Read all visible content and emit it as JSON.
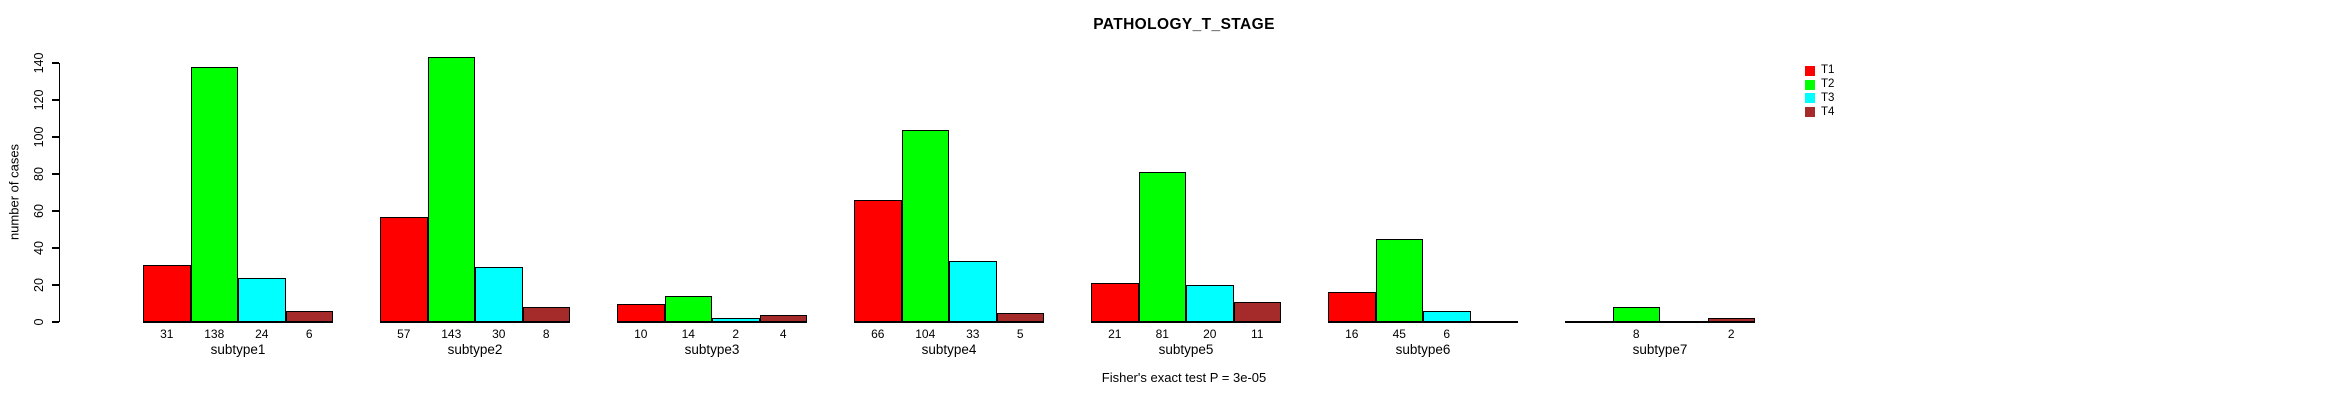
{
  "chart_data": {
    "type": "bar",
    "grouped": true,
    "title": "PATHOLOGY_T_STAGE",
    "xlabel": "",
    "ylabel": "number of cases",
    "categories": [
      "subtype1",
      "subtype2",
      "subtype3",
      "subtype4",
      "subtype5",
      "subtype6",
      "subtype7"
    ],
    "series": [
      {
        "name": "T1",
        "color": "#FF0000",
        "values": [
          31,
          57,
          10,
          66,
          21,
          16,
          0
        ]
      },
      {
        "name": "T2",
        "color": "#00FF00",
        "values": [
          138,
          143,
          14,
          104,
          81,
          45,
          8
        ]
      },
      {
        "name": "T3",
        "color": "#00FFFF",
        "values": [
          24,
          30,
          2,
          33,
          20,
          6,
          0
        ]
      },
      {
        "name": "T4",
        "color": "#A52A2A",
        "values": [
          6,
          8,
          4,
          5,
          11,
          0,
          2
        ]
      }
    ],
    "value_labels": [
      [
        "31",
        "138",
        "24",
        "6"
      ],
      [
        "57",
        "143",
        "30",
        "8"
      ],
      [
        "10",
        "14",
        "2",
        "4"
      ],
      [
        "66",
        "104",
        "33",
        "5"
      ],
      [
        "21",
        "81",
        "20",
        "11"
      ],
      [
        "16",
        "45",
        "6",
        ""
      ],
      [
        "",
        "8",
        "",
        "2"
      ]
    ],
    "yticks": [
      0,
      20,
      40,
      60,
      80,
      100,
      120,
      140
    ],
    "ylim": [
      0,
      145
    ],
    "grid": false,
    "legend_position": "right",
    "annotation": "Fisher's exact test P = 3e-05"
  }
}
